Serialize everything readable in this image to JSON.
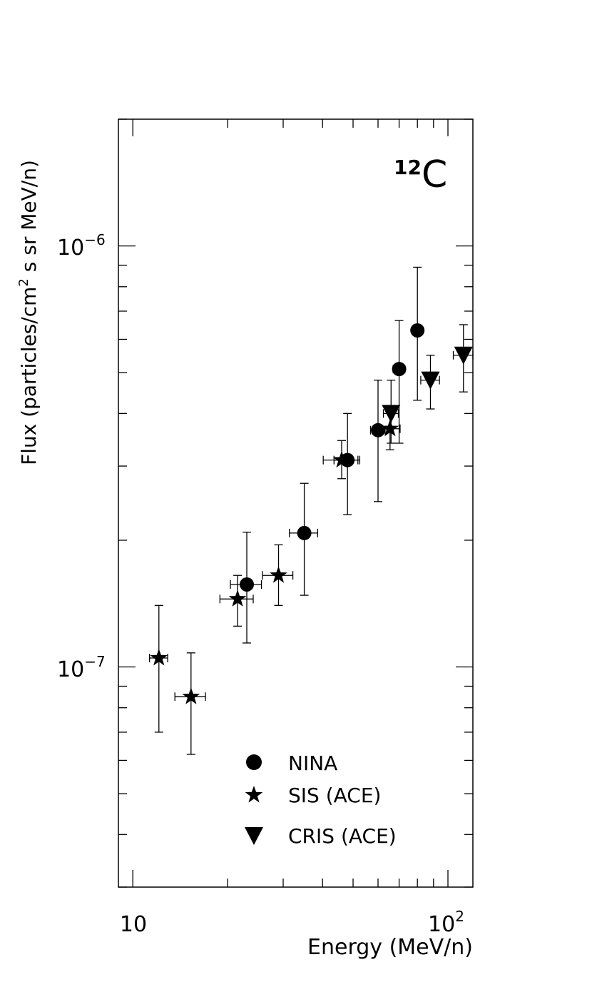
{
  "chart_data": {
    "type": "scatter",
    "xlabel": "Energy (MeV/n)",
    "ylabel_parts": [
      "Flux (particles/cm",
      "2",
      " s sr MeV/n)"
    ],
    "x_scale": "log",
    "y_scale": "log",
    "xlim": [
      9,
      120
    ],
    "ylim": [
      3e-08,
      2e-06
    ],
    "x_tick_labels": [
      {
        "value": 10,
        "base": "10",
        "exp": ""
      },
      {
        "value": 100,
        "base": "10",
        "exp": "2"
      }
    ],
    "y_tick_labels": [
      {
        "value": 1e-07,
        "base": "10",
        "exp": "−7"
      },
      {
        "value": 1e-06,
        "base": "10",
        "exp": "−6"
      }
    ],
    "annotation": {
      "sup": "12",
      "text": "C"
    },
    "legend_position": "bottom-right",
    "series": [
      {
        "name": "NINA",
        "marker": "circle",
        "points": [
          {
            "x": 23.0,
            "y": 1.57e-07,
            "xerr": [
              2.6,
              2.6
            ],
            "yerr": [
              4.3e-08,
              5.2e-08
            ]
          },
          {
            "x": 35.0,
            "y": 2.08e-07,
            "xerr": [
              3.6,
              3.6
            ],
            "yerr": [
              6e-08,
              6.5e-08
            ]
          },
          {
            "x": 48.0,
            "y": 3.1e-07,
            "xerr": [
              4.5,
              4.5
            ],
            "yerr": [
              8e-08,
              9e-08
            ]
          },
          {
            "x": 60.0,
            "y": 3.65e-07,
            "xerr": [
              3.2,
              3.2
            ],
            "yerr": [
              1.18e-07,
              1.15e-07
            ]
          },
          {
            "x": 70.0,
            "y": 5.1e-07,
            "xerr": [
              3.0,
              3.0
            ],
            "yerr": [
              1.7e-07,
              1.55e-07
            ]
          },
          {
            "x": 80.0,
            "y": 6.3e-07,
            "xerr": [
              2.4,
              2.4
            ],
            "yerr": [
              2e-07,
              2.6e-07
            ]
          }
        ]
      },
      {
        "name": "SIS (ACE)",
        "marker": "star",
        "points": [
          {
            "x": 12.1,
            "y": 1.05e-07,
            "xerr": [
              0.8,
              0.8
            ],
            "yerr": [
              3.5e-08,
              3.5e-08
            ]
          },
          {
            "x": 15.3,
            "y": 8.5e-08,
            "xerr": [
              1.7,
              1.7
            ],
            "yerr": [
              2.3e-08,
              2.3e-08
            ]
          },
          {
            "x": 21.5,
            "y": 1.45e-07,
            "xerr": [
              2.6,
              2.6
            ],
            "yerr": [
              2e-08,
              2e-08
            ]
          },
          {
            "x": 29.0,
            "y": 1.65e-07,
            "xerr": [
              3.2,
              3.2
            ],
            "yerr": [
              2.5e-08,
              3e-08
            ]
          },
          {
            "x": 46.0,
            "y": 3.1e-07,
            "xerr": [
              5.8,
              5.8
            ],
            "yerr": [
              3e-08,
              3.5e-08
            ]
          },
          {
            "x": 65.5,
            "y": 3.68e-07,
            "xerr": [
              5.0,
              5.0
            ],
            "yerr": [
              4e-08,
              4e-08
            ]
          }
        ]
      },
      {
        "name": "CRIS (ACE)",
        "marker": "triangle-down",
        "points": [
          {
            "x": 66.0,
            "y": 4e-07,
            "xerr": [
              3.6,
              3.6
            ],
            "yerr": [
              6e-08,
              8e-08
            ]
          },
          {
            "x": 88.0,
            "y": 4.8e-07,
            "xerr": [
              6.0,
              6.0
            ],
            "yerr": [
              7e-08,
              7e-08
            ]
          },
          {
            "x": 112.0,
            "y": 5.5e-07,
            "xerr": [
              8.0,
              8.0
            ],
            "yerr": [
              1e-07,
              1e-07
            ]
          }
        ]
      }
    ]
  }
}
